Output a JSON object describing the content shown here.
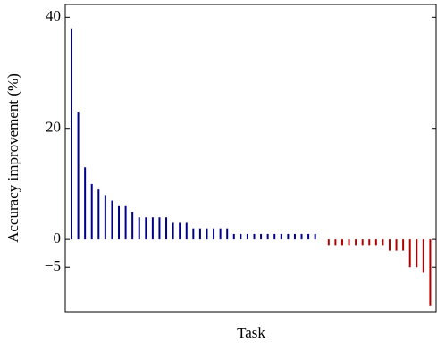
{
  "chart_data": {
    "type": "bar",
    "xlabel": "Task",
    "ylabel": "Accuracy improvement (%)",
    "values": [
      38,
      23,
      13,
      10,
      9,
      8,
      7,
      6,
      6,
      5,
      4,
      4,
      4,
      4,
      4,
      3,
      3,
      3,
      2,
      2,
      2,
      2,
      2,
      2,
      1,
      1,
      1,
      1,
      1,
      1,
      1,
      1,
      1,
      1,
      1,
      1,
      1,
      0,
      -1,
      -1,
      -1,
      -1,
      -1,
      -1,
      -1,
      -1,
      -1,
      -2,
      -2,
      -2,
      -5,
      -5,
      -6,
      -12
    ],
    "color_positive": "#00008b",
    "color_negative": "#b00000",
    "ylim": [
      -13,
      42.3
    ],
    "yticks": [
      {
        "value": -5,
        "label": "−5"
      },
      0,
      20,
      40
    ]
  }
}
